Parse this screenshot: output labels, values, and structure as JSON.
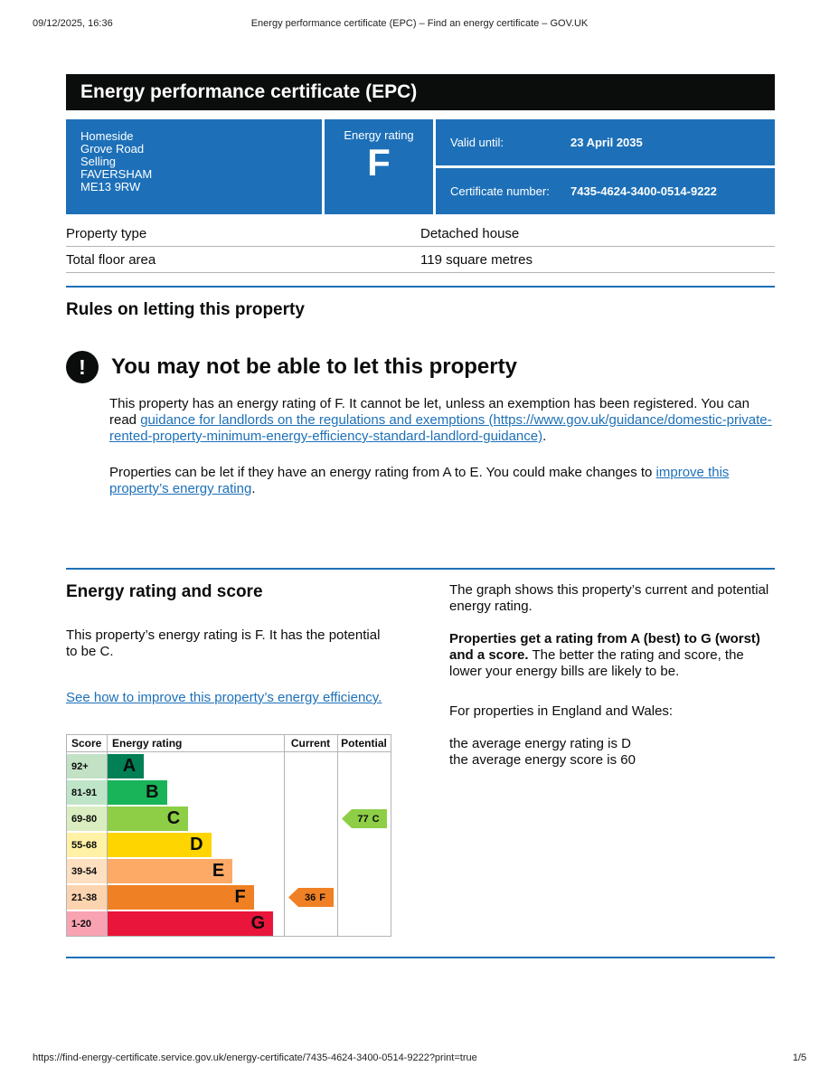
{
  "meta": {
    "print_timestamp": "09/12/2025, 16:36",
    "print_title": "Energy performance certificate (EPC) – Find an energy certificate – GOV.UK",
    "footer_url": "https://find-energy-certificate.service.gov.uk/energy-certificate/7435-4624-3400-0514-9222?print=true",
    "page_indicator": "1/5"
  },
  "banner": {
    "title": "Energy performance certificate (EPC)"
  },
  "summary": {
    "address_lines": [
      "Homeside",
      "Grove Road",
      "Selling",
      "FAVERSHAM",
      "ME13 9RW"
    ],
    "energy_rating_label": "Energy rating",
    "energy_rating": "F",
    "valid_until_label": "Valid until:",
    "valid_until": "23 April 2035",
    "certificate_number_label": "Certificate number:",
    "certificate_number": "7435-4624-3400-0514-9222"
  },
  "property_details": {
    "rows": [
      {
        "label": "Property type",
        "value": "Detached house"
      },
      {
        "label": "Total floor area",
        "value": "119 square metres"
      }
    ]
  },
  "rules_section": {
    "heading": "Rules on letting this property",
    "warning_icon": "!",
    "warning_title": "You may not be able to let this property",
    "para1_before": "This property has an energy rating of F. It cannot be let, unless an exemption has been registered. You can read ",
    "para1_link": "guidance for landlords on the regulations and exemptions (https://www.gov.uk/guidance/domestic-private-rented-property-minimum-energy-efficiency-standard-landlord-guidance)",
    "para1_after": ".",
    "para2_before": "Properties can be let if they have an energy rating from A to E. You could make changes to ",
    "para2_link": "improve this property’s energy rating",
    "para2_after": "."
  },
  "rating_section": {
    "heading": "Energy rating and score",
    "intro": "This property’s energy rating is F. It has the potential to be C.",
    "improve_link": "See how to improve this property’s energy efficiency.",
    "right_para1": "The graph shows this property’s current and potential energy rating.",
    "right_para2_bold": "Properties get a rating from A (best) to G (worst) and a score.",
    "right_para2_rest": " The better the rating and score, the lower your energy bills are likely to be.",
    "right_para3": "For properties in England and Wales:",
    "right_para4_line1": "the average energy rating is D",
    "right_para4_line2": "the average energy score is 60"
  },
  "chart_data": {
    "type": "bar",
    "title": "Energy rating and score",
    "columns": [
      "Score",
      "Energy rating",
      "Current",
      "Potential"
    ],
    "bands": [
      {
        "score": "92+",
        "letter": "A",
        "color": "#008054",
        "score_bg": "#c2e1c5",
        "width_pct": 21
      },
      {
        "score": "81-91",
        "letter": "B",
        "color": "#19b459",
        "score_bg": "#bfe5c8",
        "width_pct": 34
      },
      {
        "score": "69-80",
        "letter": "C",
        "color": "#8dce46",
        "score_bg": "#d9edc0",
        "width_pct": 46
      },
      {
        "score": "55-68",
        "letter": "D",
        "color": "#ffd500",
        "score_bg": "#fff1a6",
        "width_pct": 59
      },
      {
        "score": "39-54",
        "letter": "E",
        "color": "#fcaa65",
        "score_bg": "#fedfc0",
        "width_pct": 71
      },
      {
        "score": "21-38",
        "letter": "F",
        "color": "#ef8023",
        "score_bg": "#fbd3ae",
        "width_pct": 83
      },
      {
        "score": "1-20",
        "letter": "G",
        "color": "#e9153b",
        "score_bg": "#f8a2b2",
        "width_pct": 94
      }
    ],
    "current": {
      "score": 36,
      "letter": "F",
      "band_index": 5,
      "color": "#ef8023"
    },
    "potential": {
      "score": 77,
      "letter": "C",
      "band_index": 2,
      "color": "#8dce46"
    }
  }
}
